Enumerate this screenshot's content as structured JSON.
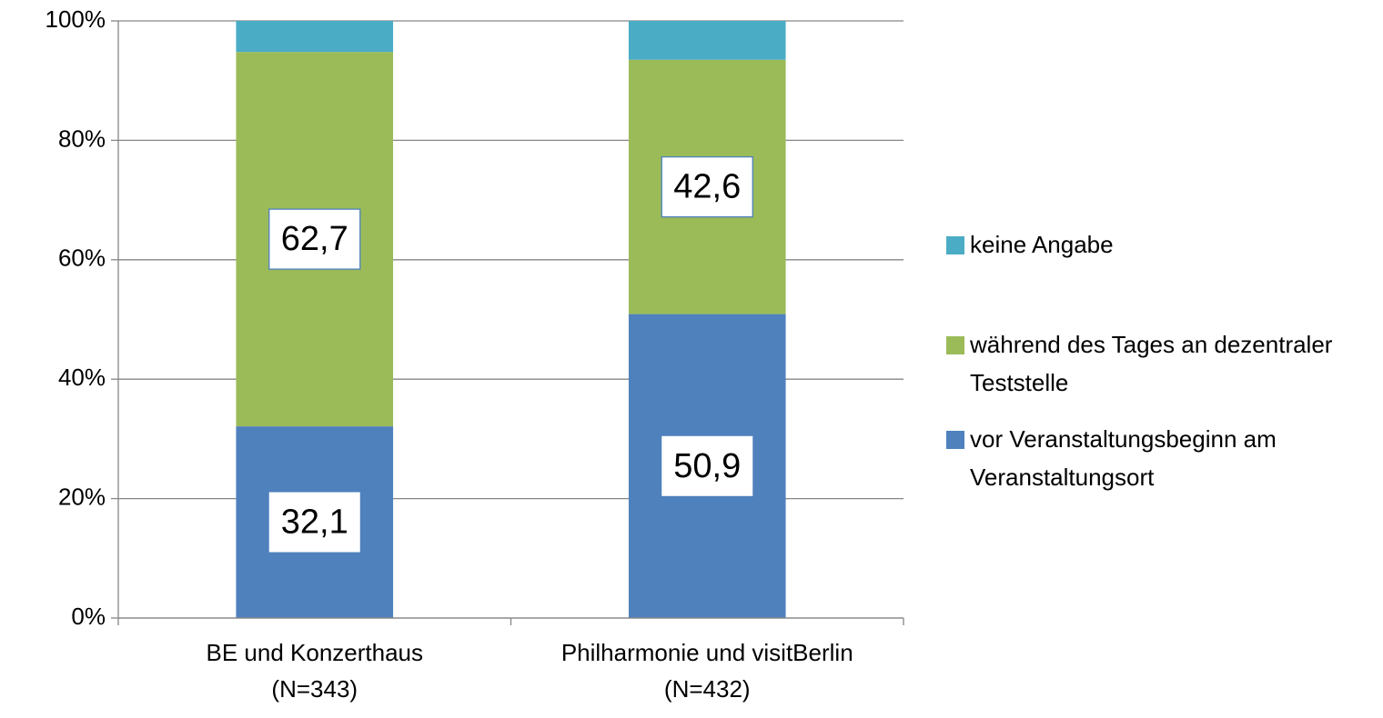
{
  "chart_data": {
    "type": "stacked_bar",
    "categories": [
      "BE und Konzerthaus\n(N=343)",
      "Philharmonie und visitBerlin\n(N=432)"
    ],
    "series": [
      {
        "name": "vor Veranstaltungsbeginn am Veranstaltungsort",
        "color": "#4f81bd",
        "values": [
          32.1,
          50.9
        ],
        "value_labels": [
          "32,1",
          "50,9"
        ]
      },
      {
        "name": "während des Tages an dezentraler Teststelle",
        "color": "#9bbb59",
        "values": [
          62.7,
          42.6
        ],
        "value_labels": [
          "62,7",
          "42,6"
        ]
      },
      {
        "name": "keine Angabe",
        "color": "#4bacc6",
        "values": [
          5.2,
          6.5
        ]
      }
    ],
    "ylim": [
      0,
      100
    ],
    "yticks": [
      {
        "value": 0,
        "label": "0%"
      },
      {
        "value": 20,
        "label": "20%"
      },
      {
        "value": 40,
        "label": "40%"
      },
      {
        "value": 60,
        "label": "60%"
      },
      {
        "value": 80,
        "label": "80%"
      },
      {
        "value": 100,
        "label": "100%"
      }
    ],
    "grid": true,
    "legend": "right"
  }
}
